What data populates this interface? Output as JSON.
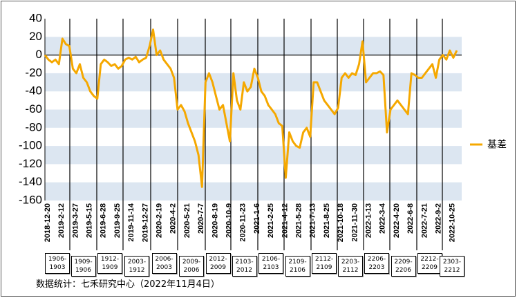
{
  "chart_data": {
    "type": "line",
    "categories": [
      "2018-12-20",
      null,
      null,
      null,
      "2019-2-12",
      null,
      null,
      null,
      "2019-3-27",
      null,
      null,
      null,
      "2019-5-15",
      null,
      null,
      null,
      "2019-6-28",
      null,
      null,
      null,
      "2019-9-25",
      null,
      null,
      null,
      "2019-11-14",
      null,
      null,
      null,
      "2019-12-27",
      null,
      null,
      null,
      "2020-2-19",
      null,
      null,
      null,
      "2020-4-2",
      null,
      null,
      null,
      "2020-5-21",
      null,
      null,
      null,
      "2020-7-7",
      null,
      null,
      null,
      "2020-8-19",
      null,
      null,
      null,
      "2020-10-9",
      null,
      null,
      null,
      "2020-11-23",
      null,
      null,
      null,
      "2021-1-6",
      null,
      null,
      null,
      "2021-2-25",
      null,
      null,
      null,
      "2021-4-12",
      null,
      null,
      null,
      "2021-5-28",
      null,
      null,
      null,
      "2021-7-13",
      null,
      null,
      null,
      "2021-8-25",
      null,
      null,
      null,
      "2021-10-18",
      null,
      null,
      null,
      "2021-11-30",
      null,
      null,
      null,
      "2022-1-13",
      null,
      null,
      null,
      "2022-3-4",
      null,
      null,
      null,
      "2022-4-20",
      null,
      null,
      null,
      "2022-6-8",
      null,
      null,
      null,
      "2022-7-21",
      null,
      null,
      null,
      "2022-9-2",
      null,
      null,
      null,
      "2022-10-25",
      null,
      null
    ],
    "series": [
      {
        "name": "基差",
        "color": "#f5a800",
        "values": [
          0,
          -5,
          -8,
          -5,
          -10,
          18,
          12,
          10,
          -15,
          -20,
          -10,
          -25,
          -30,
          -40,
          -45,
          -48,
          -10,
          -5,
          -8,
          -12,
          -10,
          -15,
          -12,
          -5,
          -3,
          -5,
          -2,
          -8,
          -5,
          -3,
          10,
          28,
          0,
          5,
          -5,
          -10,
          -15,
          -25,
          -60,
          -55,
          -62,
          -75,
          -85,
          -95,
          -110,
          -145,
          -30,
          -20,
          -30,
          -45,
          -60,
          -55,
          -75,
          -95,
          -20,
          -50,
          -60,
          -30,
          -40,
          -35,
          -15,
          -25,
          -40,
          -45,
          -55,
          -60,
          -65,
          -75,
          -78,
          -135,
          -85,
          -95,
          -100,
          -102,
          -85,
          -80,
          -90,
          -30,
          -30,
          -40,
          -50,
          -55,
          -60,
          -65,
          -58,
          -25,
          -20,
          -25,
          -20,
          -22,
          -10,
          15,
          -30,
          -25,
          -20,
          -20,
          -18,
          -22,
          -85,
          -60,
          -55,
          -50,
          -55,
          -60,
          -65,
          -20,
          -22,
          -25,
          -25,
          -20,
          -15,
          -10,
          -25,
          -5,
          0,
          -5,
          5,
          -3,
          5
        ]
      }
    ],
    "ylim": [
      -160,
      40
    ],
    "yticks": [
      40,
      20,
      0,
      -20,
      -40,
      -60,
      -80,
      -100,
      -120,
      -140,
      -160
    ],
    "legend": "right",
    "contracts": [
      "1906-1903",
      "1909-1906",
      "1912-1909",
      "2003-1912",
      "2006-2003",
      "2009-2006",
      "2012-2009",
      "2103-2012",
      "2106-2103",
      "2109-2106",
      "2112-2109",
      "2203-2112",
      "2206-2203",
      "2209-2206",
      "2212-2209",
      "2303-2212"
    ],
    "source": "数据统计：七禾研究中心（2022年11月4日）"
  }
}
